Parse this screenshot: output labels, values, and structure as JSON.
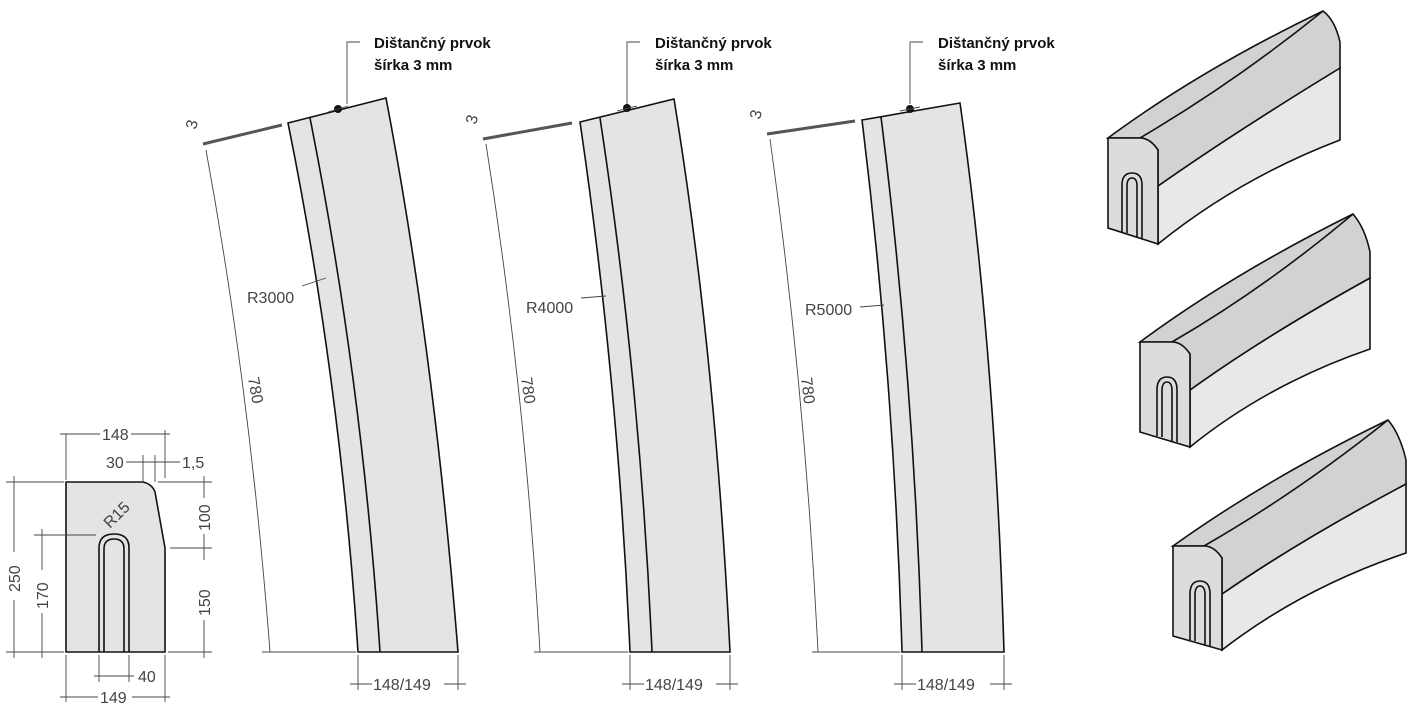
{
  "callouts": [
    {
      "line1": "Dištančný prvok",
      "line2": "šírka 3 mm"
    },
    {
      "line1": "Dištančný prvok",
      "line2": "šírka 3 mm"
    },
    {
      "line1": "Dištančný prvok",
      "line2": "šírka 3 mm"
    }
  ],
  "cross_section": {
    "width_top": "148",
    "top_left": "30",
    "top_right": "1,5",
    "height_total": "250",
    "height_slot": "170",
    "height_chamfer": "100",
    "height_lower": "150",
    "radius": "R15",
    "slot_width": "40",
    "width_bottom": "149"
  },
  "curved_views": [
    {
      "radius": "R3000",
      "length": "780",
      "gap": "3",
      "width": "148/149"
    },
    {
      "radius": "R4000",
      "length": "780",
      "gap": "3",
      "width": "148/149"
    },
    {
      "radius": "R5000",
      "length": "780",
      "gap": "3",
      "width": "148/149"
    }
  ]
}
